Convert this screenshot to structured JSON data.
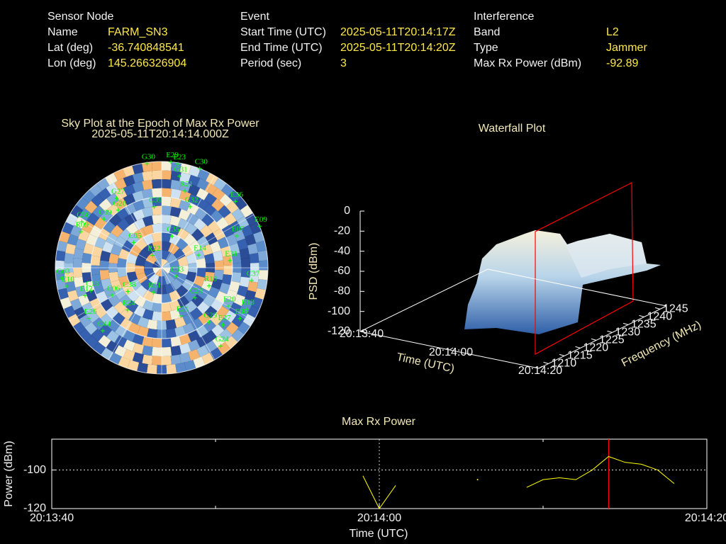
{
  "header": [
    {
      "title": "Sensor Node",
      "rows": [
        [
          "Name",
          "FARM_SN3"
        ],
        [
          "Lat (deg)",
          "-36.740848541"
        ],
        [
          "Lon (deg)",
          "145.266326904"
        ]
      ]
    },
    {
      "title": "Event",
      "rows": [
        [
          "Start Time (UTC)",
          "2025-05-11T20:14:17Z"
        ],
        [
          "End Time (UTC)",
          "2025-05-11T20:14:20Z"
        ],
        [
          "Period (sec)",
          "3"
        ]
      ]
    },
    {
      "title": "Interference",
      "rows": [
        [
          "Band",
          "L2"
        ],
        [
          "Type",
          "Jammer"
        ],
        [
          "Max Rx Power (dBm)",
          "-92.89"
        ]
      ]
    }
  ],
  "chart_data": [
    {
      "type": "skyplot",
      "title": "Sky Plot at the Epoch of Max Rx Power",
      "subtitle": "2025-05-11T20:14:14.000Z",
      "color": "#00ff00",
      "categories": [
        "E29",
        "E23",
        "C30",
        "G30",
        "G31",
        "R21",
        "G27",
        "G26",
        "C39",
        "G32",
        "E36",
        "C56",
        "C09",
        "E09",
        "E07",
        "R09",
        "C05",
        "C35",
        "R22",
        "E14",
        "E31",
        "G03",
        "E10",
        "C33",
        "C13",
        "C38",
        "C06",
        "R11",
        "C37",
        "R10",
        "E12",
        "C29",
        "E20",
        "R13",
        "E21",
        "R24",
        "E08",
        "E27",
        "G29",
        "C44",
        "E26",
        "G24"
      ],
      "azimuth": [
        5,
        9,
        21,
        352,
        11,
        17,
        327,
        323,
        353,
        25,
        48,
        300,
        310,
        67,
        67,
        294,
        312,
        18,
        324,
        71,
        84,
        264,
        259,
        121,
        252,
        235,
        241,
        199,
        98,
        111,
        250,
        132,
        120,
        116,
        158,
        219,
        123,
        133,
        139,
        223,
        235,
        143
      ],
      "elevation": [
        0,
        1,
        0,
        1,
        11,
        22,
        20,
        29,
        38,
        33,
        6,
        12,
        26,
        0,
        21,
        15,
        58,
        62,
        77,
        57,
        32,
        5,
        8,
        76,
        27,
        55,
        42,
        68,
        13,
        47,
        21,
        52,
        25,
        10,
        46,
        44,
        11,
        19,
        29,
        17,
        15,
        7
      ]
    },
    {
      "type": "waterfall3d",
      "title": "Waterfall Plot",
      "xlabel": "Time (UTC)",
      "ylabel": "Frequency (MHz)",
      "zlabel": "PSD (dBm)",
      "xlim": [
        "20:13:40",
        "20:14:20"
      ],
      "xticks": [
        "20:13:40",
        "20:14:00",
        "20:14:20"
      ],
      "ylim": [
        1207,
        1247
      ],
      "yticks": [
        1210,
        1215,
        1220,
        1225,
        1230,
        1235,
        1240,
        1245
      ],
      "zlim": [
        -120,
        0
      ],
      "zticks": [
        0,
        -20,
        -40,
        -60,
        -80,
        -100,
        -120
      ]
    },
    {
      "type": "line",
      "title": "Max Rx Power",
      "xlabel": "Time (UTC)",
      "ylabel": "Power (dBm)",
      "color": "#ffff00",
      "x": [
        "20:13:59",
        "20:14:00",
        "20:14:01",
        "20:14:02",
        "20:14:06",
        "20:14:07",
        "20:14:09",
        "20:14:10",
        "20:14:11",
        "20:14:12",
        "20:14:13",
        "20:14:14",
        "20:14:15",
        "20:14:16",
        "20:14:17",
        "20:14:18"
      ],
      "values": [
        -103,
        -120,
        -108,
        null,
        -105,
        null,
        -109,
        -105,
        -104,
        -105,
        -100,
        -93,
        -96,
        -97,
        -100,
        -107
      ],
      "xlim": [
        "20:13:40",
        "20:14:20"
      ],
      "xticks": [
        "20:13:40",
        "20:14:00",
        "20:14:20"
      ],
      "xminorticks": [
        "20:13:50",
        "20:14:10"
      ],
      "ylim": [
        -120,
        -84
      ],
      "yticks": [
        -120,
        -100
      ],
      "grid": true,
      "highlight_x": "20:14:14",
      "highlight_color": "#ff0000"
    }
  ]
}
